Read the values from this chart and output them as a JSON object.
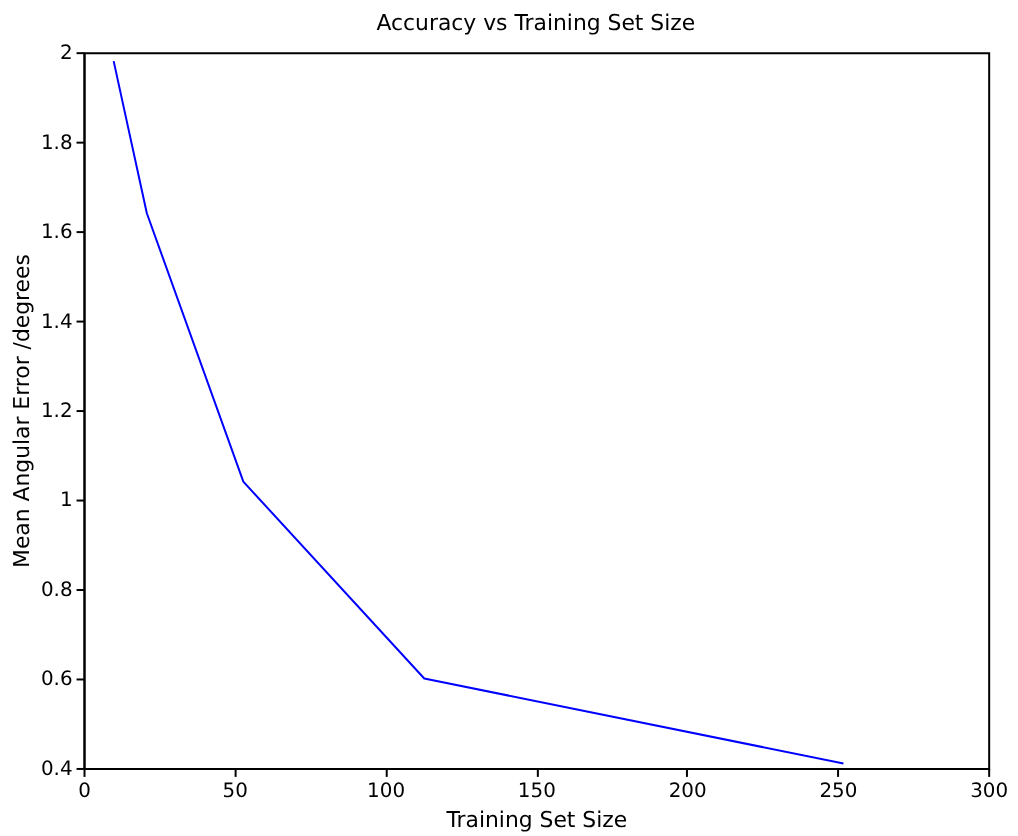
{
  "chart_data": {
    "type": "line",
    "title": "Accuracy vs Training Set Size",
    "xlabel": "Training Set Size",
    "ylabel": "Mean Angular Error /degrees",
    "x": [
      10,
      21,
      53,
      113,
      252
    ],
    "series": [
      {
        "color": "#0000ff",
        "values": [
          1.98,
          1.64,
          1.04,
          0.6,
          0.41
        ]
      }
    ],
    "xlim": [
      0,
      300
    ],
    "xticks": [
      0,
      50,
      100,
      150,
      200,
      250,
      300
    ],
    "ylim": [
      0.4,
      2
    ],
    "yticks": [
      0.4,
      0.6,
      0.8,
      1,
      1.2,
      1.4,
      1.6,
      1.8,
      2
    ],
    "grid": false,
    "marker": "none",
    "line_style": "solid"
  }
}
